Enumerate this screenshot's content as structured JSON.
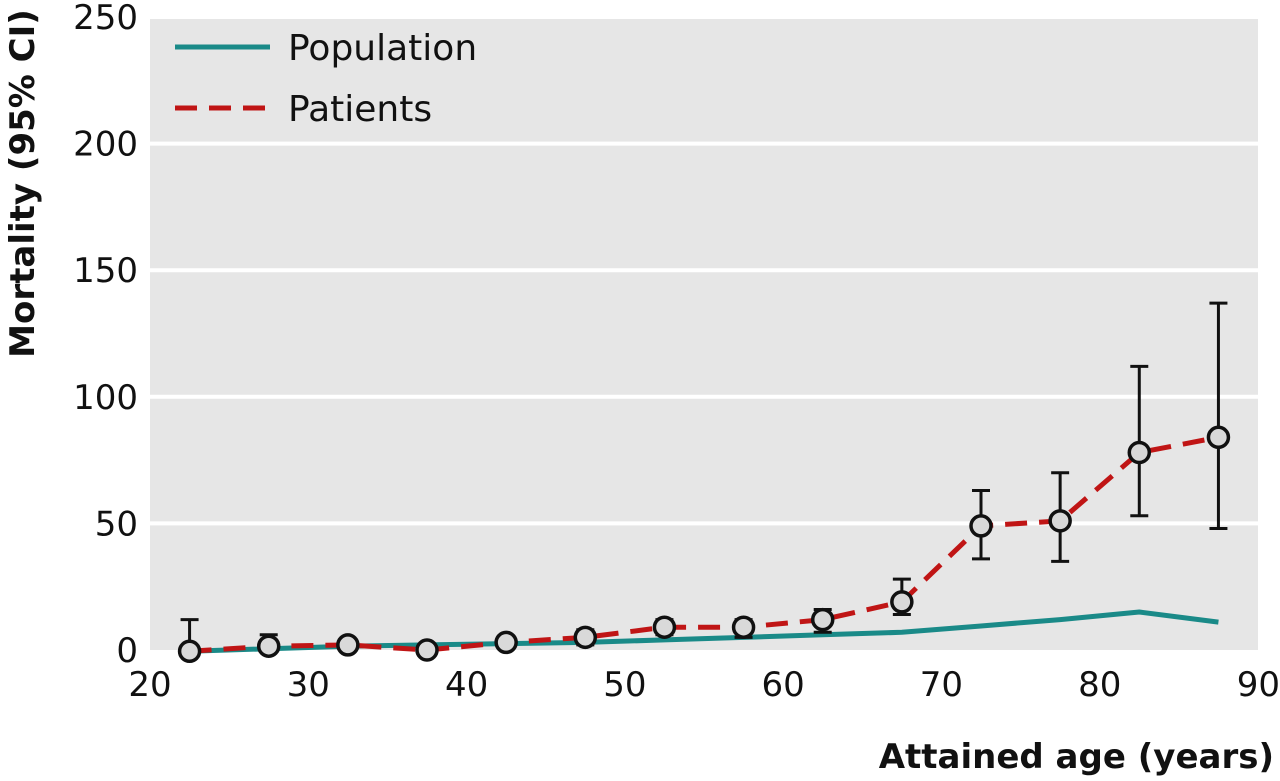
{
  "chart_data": {
    "type": "line",
    "xlabel": "Attained age (years)",
    "ylabel": "Mortality (95% CI)",
    "xlim": [
      20,
      90
    ],
    "ylim": [
      0,
      250
    ],
    "xticks": [
      20,
      30,
      40,
      50,
      60,
      70,
      80,
      90
    ],
    "yticks": [
      0,
      50,
      100,
      150,
      200,
      250
    ],
    "grid": "horizontal",
    "legend_position": "top-left",
    "background_color": "#e6e6e6",
    "series": [
      {
        "name": "Population",
        "style": "solid",
        "color": "#1a8a88",
        "x": [
          22.5,
          27.5,
          32.5,
          37.5,
          42.5,
          47.5,
          52.5,
          57.5,
          62.5,
          67.5,
          72.5,
          77.5,
          82.5,
          87.5
        ],
        "y": [
          -0.5,
          0.5,
          1.5,
          2.0,
          2.5,
          3.0,
          4.0,
          5.0,
          6.0,
          7.0,
          9.5,
          12.0,
          15.0,
          11.0
        ]
      },
      {
        "name": "Patients",
        "style": "dashed",
        "color": "#c01515",
        "x": [
          22.5,
          27.5,
          32.5,
          37.5,
          42.5,
          47.5,
          52.5,
          57.5,
          62.5,
          67.5,
          72.5,
          77.5,
          82.5,
          87.5
        ],
        "y": [
          -0.5,
          1.5,
          2.0,
          0.0,
          3.0,
          5.0,
          9.0,
          9.0,
          12.0,
          19.0,
          49.0,
          51.0,
          78.0,
          84.0
        ],
        "ci_lower": [
          -0.5,
          0.0,
          0.0,
          0.0,
          1.0,
          2.0,
          6.0,
          5.0,
          7.0,
          14.0,
          36.0,
          35.0,
          53.0,
          48.0
        ],
        "ci_upper": [
          12.0,
          6.0,
          3.0,
          1.0,
          5.0,
          8.0,
          12.0,
          12.0,
          16.0,
          28.0,
          63.0,
          70.0,
          112.0,
          137.0
        ]
      }
    ]
  }
}
